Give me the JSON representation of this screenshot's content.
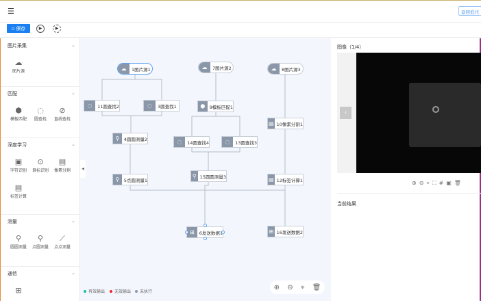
{
  "header": {
    "menu_icon": "menu-fold-icon",
    "return_button": "返回低代"
  },
  "toolbar": {
    "save_label": "保存",
    "save_icon": "save-icon",
    "run_icon": "play-icon",
    "loop_icon": "loop-run-icon",
    "accent": "#1a7ff0"
  },
  "sidebar": {
    "sections": [
      {
        "title": "图片采集",
        "tools": [
          {
            "label": "图片源",
            "icon": "cloud-image-icon"
          }
        ]
      },
      {
        "title": "匹配",
        "tools": [
          {
            "label": "模板匹配",
            "icon": "cube-icon"
          },
          {
            "label": "圆查找",
            "icon": "circle-search-icon"
          },
          {
            "label": "直线查找",
            "icon": "line-search-icon"
          }
        ]
      },
      {
        "title": "深度学习",
        "tools": [
          {
            "label": "字符识别",
            "icon": "ocr-icon"
          },
          {
            "label": "目标识别",
            "icon": "target-icon"
          },
          {
            "label": "像素分割",
            "icon": "segment-icon"
          },
          {
            "label": "标签计算",
            "icon": "label-calc-icon"
          }
        ]
      },
      {
        "title": "测量",
        "tools": [
          {
            "label": "圆圆测量",
            "icon": "circle-measure-icon"
          },
          {
            "label": "点圆测量",
            "icon": "point-circle-icon"
          },
          {
            "label": "点点测量",
            "icon": "point-point-icon"
          }
        ]
      },
      {
        "title": "通信",
        "tools": [
          {
            "label": "",
            "icon": "send-data-icon"
          }
        ]
      }
    ]
  },
  "canvas": {
    "nodes": [
      {
        "label": "1图片源1",
        "icon": "cloud-image-icon"
      },
      {
        "label": "7图片源2",
        "icon": "cloud-image-icon"
      },
      {
        "label": "8图片源3",
        "icon": "cloud-image-icon"
      },
      {
        "label": "11圆查找2",
        "icon": "circle-search-icon"
      },
      {
        "label": "3圆查找1",
        "icon": "circle-search-icon"
      },
      {
        "label": "9模板匹配1",
        "icon": "cube-icon"
      },
      {
        "label": "10像素分割1",
        "icon": "segment-icon"
      },
      {
        "label": "4圆圆测量2",
        "icon": "circle-measure-icon"
      },
      {
        "label": "14圆查找4",
        "icon": "circle-search-icon"
      },
      {
        "label": "13圆查找3",
        "icon": "circle-search-icon"
      },
      {
        "label": "5点圆测量1",
        "icon": "point-circle-icon"
      },
      {
        "label": "15圆圆测量3",
        "icon": "circle-measure-icon"
      },
      {
        "label": "12标签计算1",
        "icon": "label-calc-icon"
      },
      {
        "label": "6发送数据1",
        "icon": "send-data-icon"
      },
      {
        "label": "16发送数据2",
        "icon": "send-data-icon"
      }
    ],
    "legend": [
      {
        "label": "有效输出",
        "color": "#13c2a3"
      },
      {
        "label": "无效输出",
        "color": "#f5222d"
      },
      {
        "label": "未执行",
        "color": "#8a97a8"
      }
    ],
    "zoom_controls": [
      "zoom-in-icon",
      "zoom-out-icon",
      "locate-icon",
      "delete-icon"
    ]
  },
  "right_panel": {
    "image_title": "图像（1/4）",
    "result_title": "当前结果",
    "viewer_tools": [
      "zoom-in-icon",
      "zoom-out-icon",
      "locate-icon",
      "fullscreen-icon",
      "grid-icon",
      "image-compare-icon",
      "delete-icon"
    ]
  }
}
